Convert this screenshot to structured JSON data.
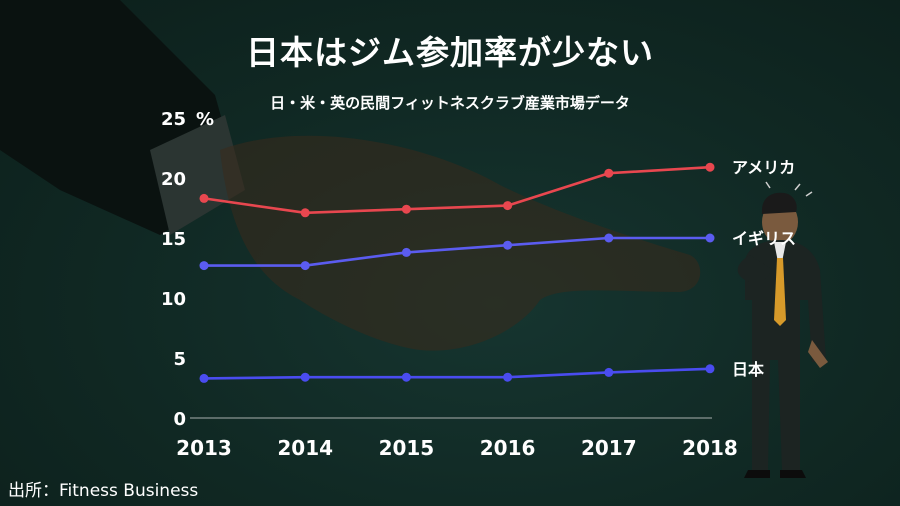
{
  "title": "日本はジム参加率が少ない",
  "subtitle": "日・米・英の民間フィットネスクラブ産業市場データ",
  "source": "出所：Fitness Business",
  "colors": {
    "background": "#102823",
    "america": "#e8474f",
    "uk": "#5b5cf0",
    "japan": "#4a4cf0",
    "text": "#ffffff"
  },
  "chart_data": {
    "type": "line",
    "title": "日本はジム参加率が少ない",
    "subtitle": "日・米・英の民間フィットネスクラブ産業市場データ",
    "x": [
      "2013",
      "2014",
      "2015",
      "2016",
      "2017",
      "2018"
    ],
    "ylim": [
      0,
      25
    ],
    "yticks": [
      "0",
      "5",
      "10",
      "15",
      "20",
      "25"
    ],
    "yunit": "%",
    "grid": false,
    "series": [
      {
        "name": "アメリカ",
        "color": "#e8474f",
        "values": [
          18.3,
          17.1,
          17.4,
          17.7,
          20.4,
          20.9
        ]
      },
      {
        "name": "イギリス",
        "color": "#5b5cf0",
        "values": [
          12.7,
          12.7,
          13.8,
          14.4,
          15.0,
          15.0
        ]
      },
      {
        "name": "日本",
        "color": "#4a4cf0",
        "values": [
          3.3,
          3.4,
          3.4,
          3.4,
          3.8,
          4.1
        ]
      }
    ]
  }
}
